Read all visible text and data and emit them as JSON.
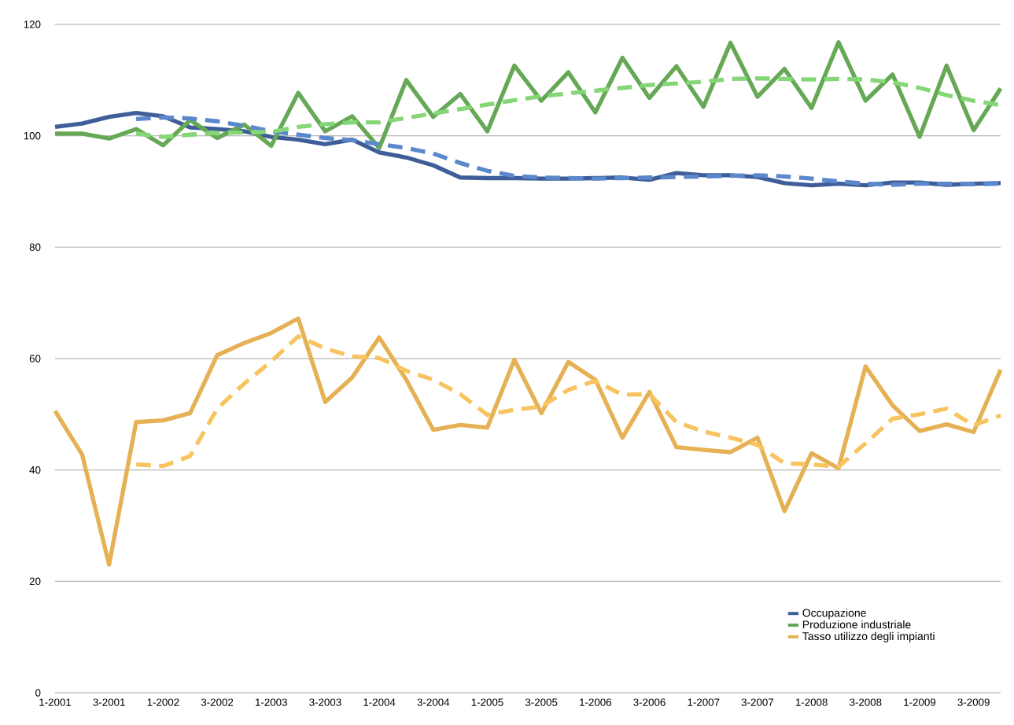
{
  "chart_data": {
    "type": "line",
    "categories": [
      "1-2001",
      null,
      "3-2001",
      null,
      "1-2002",
      null,
      "3-2002",
      null,
      "1-2003",
      null,
      "3-2003",
      null,
      "1-2004",
      null,
      "3-2004",
      null,
      "1-2005",
      null,
      "3-2005",
      null,
      "1-2006",
      null,
      "3-2006",
      null,
      "1-2007",
      null,
      "3-2007",
      null,
      "1-2008",
      null,
      "3-2008",
      null,
      "1-2009",
      null,
      "3-2009",
      null
    ],
    "series": [
      {
        "name": "Occupazione",
        "color": "#3f5e99",
        "line_style": "solid",
        "values": [
          101.6,
          102.2,
          103.4,
          104.1,
          103.5,
          101.5,
          101.2,
          100.8,
          99.8,
          99.3,
          98.5,
          99.3,
          97.0,
          96.1,
          94.7,
          92.5,
          92.4,
          92.4,
          92.3,
          92.3,
          92.4,
          92.5,
          92.1,
          93.3,
          92.9,
          92.9,
          92.6,
          91.5,
          91.1,
          91.4,
          91.1,
          91.6,
          91.6,
          91.2,
          91.4,
          91.5
        ]
      },
      {
        "name": "Produzione industriale",
        "color": "#65a855",
        "line_style": "solid",
        "values": [
          100.4,
          100.4,
          99.5,
          101.2,
          98.3,
          102.8,
          99.6,
          102.0,
          98.2,
          107.7,
          100.8,
          103.5,
          97.8,
          110.0,
          103.4,
          107.5,
          100.8,
          112.6,
          106.3,
          111.4,
          104.2,
          114.0,
          106.8,
          112.5,
          105.2,
          116.7,
          107.0,
          112.0,
          105.0,
          116.8,
          106.3,
          111.0,
          99.8,
          112.6,
          101.0,
          108.5
        ]
      },
      {
        "name": "Tasso utilizzo degli impianti",
        "color": "#e5b154",
        "line_style": "solid",
        "values": [
          50.6,
          42.8,
          23.0,
          48.6,
          48.9,
          50.2,
          60.6,
          62.8,
          64.6,
          67.2,
          52.2,
          56.6,
          63.8,
          56.2,
          47.2,
          48.1,
          47.6,
          59.8,
          50.2,
          59.4,
          56.2,
          45.8,
          54.0,
          44.1,
          43.6,
          43.2,
          45.8,
          32.6,
          43.0,
          40.3,
          58.6,
          51.6,
          47.0,
          48.2,
          46.8,
          58.0
        ]
      },
      {
        "color": "#5b87cc",
        "line_style": "dashed",
        "values": [
          null,
          null,
          null,
          103.0,
          103.3,
          103.1,
          102.6,
          101.8,
          100.8,
          100.2,
          99.6,
          99.2,
          98.5,
          97.8,
          96.8,
          95.1,
          93.7,
          92.8,
          92.5,
          92.4,
          92.3,
          92.4,
          92.5,
          92.6,
          92.7,
          92.8,
          92.9,
          92.7,
          92.3,
          91.8,
          91.4,
          91.2,
          91.4,
          91.4,
          91.3,
          91.4
        ]
      },
      {
        "color": "#84d677",
        "line_style": "dashed",
        "values": [
          null,
          null,
          null,
          100.4,
          99.8,
          100.2,
          100.5,
          100.6,
          100.7,
          101.6,
          102.1,
          102.4,
          102.4,
          103.2,
          104.0,
          104.8,
          105.6,
          106.4,
          107.1,
          107.6,
          108.1,
          108.6,
          109.1,
          109.4,
          109.7,
          110.2,
          110.3,
          110.2,
          110.1,
          110.2,
          110.1,
          109.6,
          108.6,
          107.3,
          106.3,
          105.5
        ]
      },
      {
        "color": "#f7c45f",
        "line_style": "dashed",
        "values": [
          null,
          null,
          null,
          41.0,
          40.7,
          42.5,
          51.0,
          55.5,
          59.5,
          64.0,
          61.8,
          60.4,
          60.1,
          57.8,
          56.2,
          53.6,
          49.9,
          50.8,
          51.4,
          54.4,
          56.0,
          53.5,
          53.6,
          48.6,
          46.9,
          45.8,
          44.5,
          41.2,
          41.0,
          40.6,
          44.8,
          49.2,
          50.0,
          51.0,
          48.0,
          49.8
        ]
      }
    ],
    "ylim": [
      0,
      120
    ],
    "yticks": [
      0,
      20,
      40,
      60,
      80,
      100,
      120
    ],
    "grid": "y",
    "legend": "bottom right",
    "marker": "none"
  }
}
